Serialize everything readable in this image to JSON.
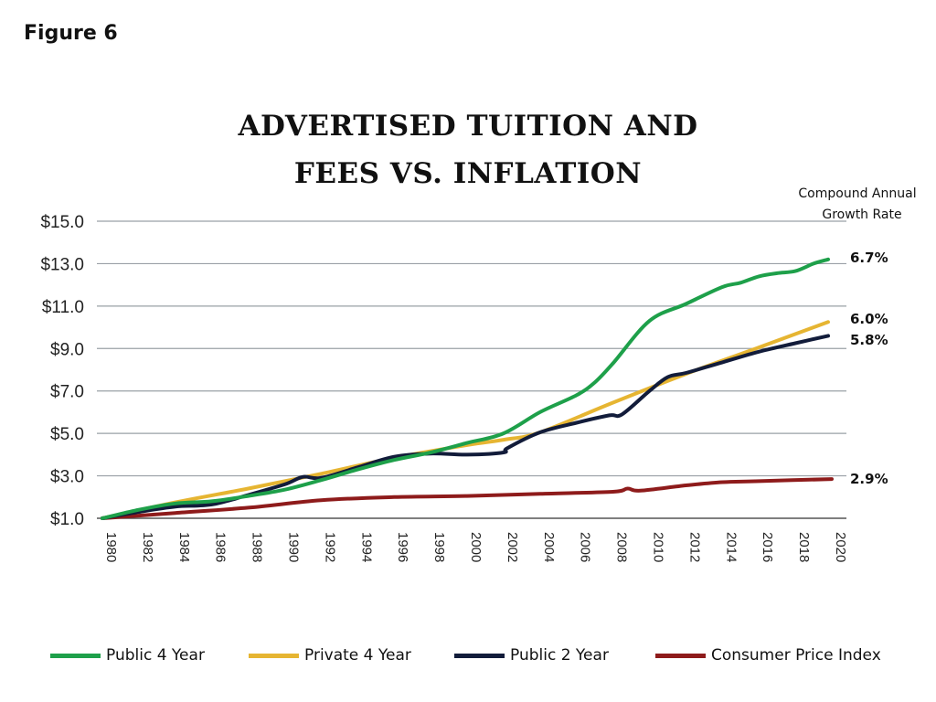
{
  "figure_label": "Figure 6",
  "title_lines": [
    "ADVERTISED TUITION AND",
    "FEES VS. INFLATION"
  ],
  "cagr_heading": [
    "Compound Annual",
    "Growth Rate"
  ],
  "chart_data": {
    "type": "line",
    "title": "ADVERTISED TUITION AND FEES VS. INFLATION",
    "xlabel": "",
    "ylabel": "",
    "xlim": [
      1980,
      2020
    ],
    "ylim": [
      1.0,
      15.0
    ],
    "y_ticks": [
      1.0,
      3.0,
      5.0,
      7.0,
      9.0,
      11.0,
      13.0,
      15.0
    ],
    "y_tick_labels": [
      "$1.0",
      "$3.0",
      "$5.0",
      "$7.0",
      "$9.0",
      "$11.0",
      "$13.0",
      "$15.0"
    ],
    "x_ticks": [
      1980,
      1982,
      1984,
      1986,
      1988,
      1990,
      1992,
      1994,
      1996,
      1998,
      2000,
      2002,
      2004,
      2006,
      2008,
      2010,
      2012,
      2014,
      2016,
      2018,
      2020
    ],
    "x_tick_labels": [
      "1980",
      "1982",
      "1984",
      "1986",
      "1988",
      "1990",
      "1992",
      "1994",
      "1996",
      "1998",
      "2000",
      "2002",
      "2004",
      "2006",
      "2008",
      "2010",
      "2012",
      "2014",
      "2016",
      "2018",
      "2020"
    ],
    "grid": "horizontal",
    "legend_position": "bottom",
    "series": [
      {
        "name": "Public 4 Year",
        "color": "#1ea04a",
        "cagr": "6.7%",
        "x": [
          1980,
          1982,
          1984,
          1986,
          1988,
          1990,
          1992,
          1994,
          1996,
          1998,
          2000,
          2002,
          2004,
          2006,
          2007,
          2008,
          2010,
          2012,
          2014,
          2015,
          2016,
          2017,
          2018,
          2019,
          2019.8
        ],
        "y": [
          1.0,
          1.4,
          1.7,
          1.8,
          2.05,
          2.35,
          2.8,
          3.3,
          3.75,
          4.1,
          4.55,
          5.0,
          6.0,
          6.8,
          7.4,
          8.3,
          10.3,
          11.1,
          11.9,
          12.1,
          12.4,
          12.55,
          12.65,
          13.0,
          13.2
        ]
      },
      {
        "name": "Private 4 Year",
        "color": "#e6b532",
        "cagr": "6.0%",
        "x": [
          1980,
          1984,
          1988,
          1992,
          1996,
          2000,
          2002,
          2004,
          2008,
          2012,
          2016,
          2019.8
        ],
        "y": [
          1.0,
          1.75,
          2.4,
          3.1,
          3.85,
          4.45,
          4.7,
          5.05,
          6.45,
          7.8,
          9.05,
          10.25
        ]
      },
      {
        "name": "Public 2 Year",
        "color": "#121c3a",
        "cagr": "5.8%",
        "x": [
          1980,
          1982,
          1984,
          1986,
          1988,
          1990,
          1991,
          1992,
          1994,
          1996,
          1998,
          2000,
          2002,
          2002.2,
          2004,
          2006,
          2007.8,
          2008.5,
          2010,
          2011,
          2012,
          2014,
          2016,
          2018,
          2019.8
        ],
        "y": [
          1.0,
          1.3,
          1.55,
          1.65,
          2.1,
          2.6,
          2.95,
          2.9,
          3.4,
          3.9,
          4.05,
          4.0,
          4.1,
          4.3,
          5.05,
          5.5,
          5.85,
          5.9,
          7.0,
          7.65,
          7.85,
          8.35,
          8.85,
          9.25,
          9.6
        ]
      },
      {
        "name": "Consumer Price Index",
        "color": "#8e1b1b",
        "cagr": "2.9%",
        "x": [
          1980,
          1984,
          1988,
          1992,
          1996,
          2000,
          2004,
          2008,
          2008.8,
          2009.5,
          2012,
          2014,
          2016,
          2020
        ],
        "y": [
          1.0,
          1.25,
          1.5,
          1.85,
          2.0,
          2.05,
          2.15,
          2.25,
          2.4,
          2.3,
          2.55,
          2.7,
          2.75,
          2.85
        ]
      }
    ]
  }
}
